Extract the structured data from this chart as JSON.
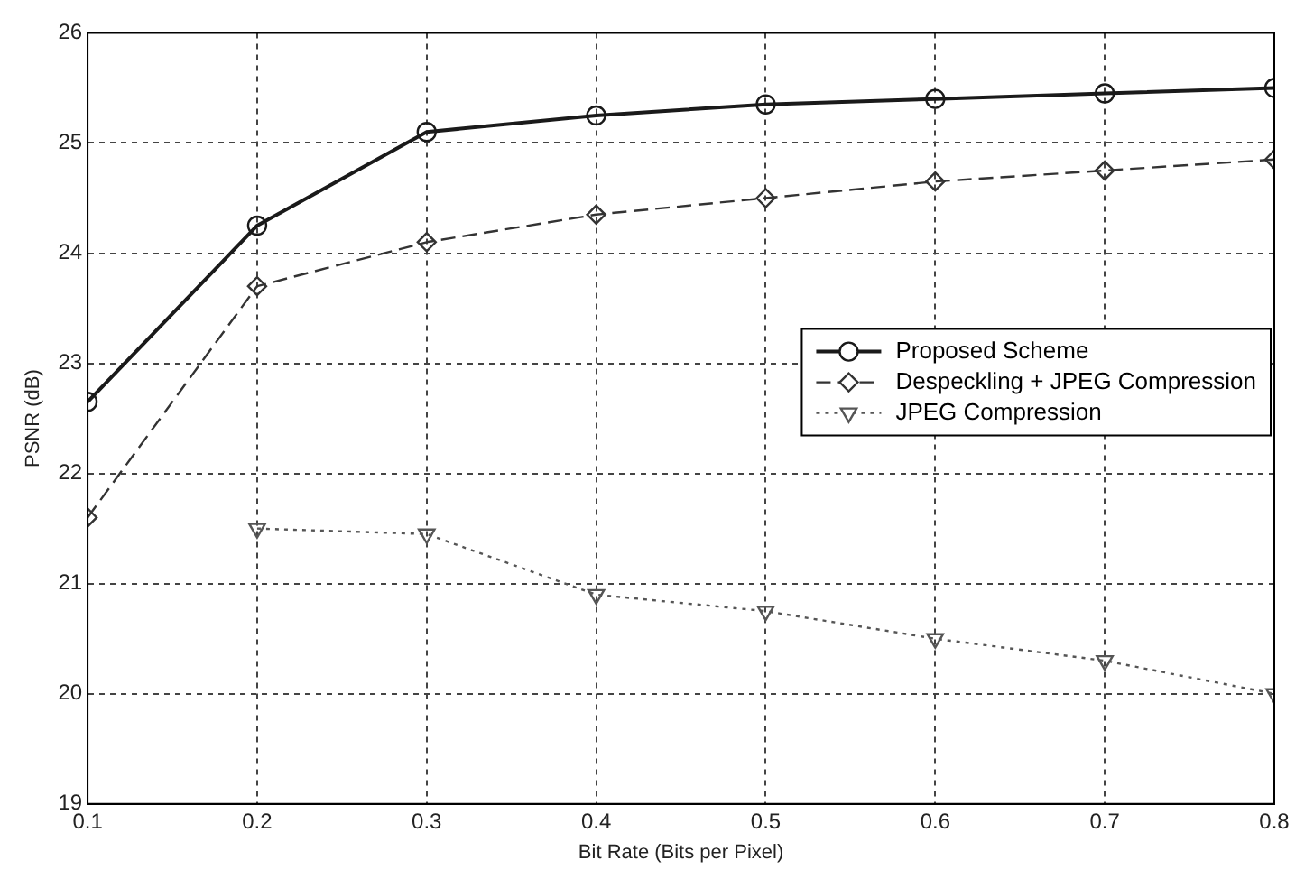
{
  "chart_data": {
    "type": "line",
    "xlabel": "Bit Rate (Bits per Pixel)",
    "ylabel": "PSNR (dB)",
    "x": [
      0.1,
      0.2,
      0.3,
      0.4,
      0.5,
      0.6,
      0.7,
      0.8
    ],
    "series": [
      {
        "name": "Proposed Scheme",
        "color": "#1a1a1a",
        "marker": "circle",
        "line_style": "solid",
        "values": [
          22.65,
          24.25,
          25.1,
          25.25,
          25.35,
          25.4,
          25.45,
          25.5
        ]
      },
      {
        "name": "Despeckling + JPEG Compression",
        "color": "#333333",
        "marker": "diamond",
        "line_style": "dashed",
        "values": [
          21.6,
          23.7,
          24.1,
          24.35,
          24.5,
          24.65,
          24.75,
          24.85
        ]
      },
      {
        "name": "JPEG Compression",
        "color": "#555555",
        "marker": "triangle",
        "line_style": "dotted",
        "values": [
          null,
          21.5,
          21.45,
          20.9,
          20.75,
          20.5,
          20.3,
          20.0
        ]
      }
    ],
    "xlim": [
      0.1,
      0.8
    ],
    "xticks": [
      0.1,
      0.2,
      0.3,
      0.4,
      0.5,
      0.6,
      0.7,
      0.8
    ],
    "ylim": [
      19,
      26
    ],
    "yticks": [
      19,
      20,
      21,
      22,
      23,
      24,
      25,
      26
    ],
    "grid": true,
    "legend": "right"
  }
}
